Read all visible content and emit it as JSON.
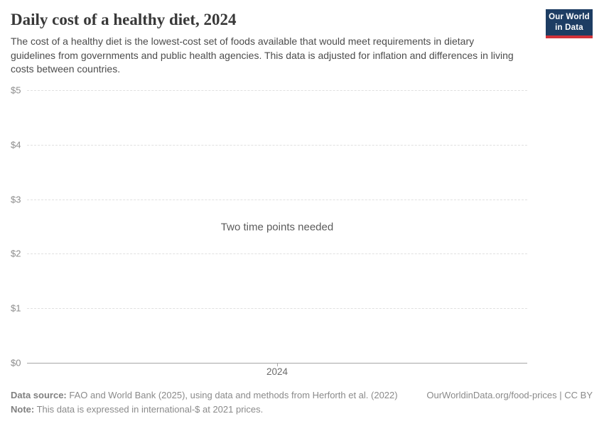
{
  "header": {
    "title": "Daily cost of a healthy diet, 2024",
    "subtitle": "The cost of a healthy diet is the lowest-cost set of foods available that would meet requirements in dietary guidelines from governments and public health agencies. This data is adjusted for inflation and differences in living costs between countries.",
    "logo": {
      "line1": "Our World",
      "line2": "in Data",
      "bg_color": "#1d3d63",
      "accent_color": "#d13239"
    }
  },
  "chart_data": {
    "type": "line",
    "title": "Daily cost of a healthy diet, 2024",
    "series": [],
    "x": [],
    "empty_message": "Two time points needed",
    "xlabel": "",
    "ylabel": "",
    "x_ticks": [
      "2024"
    ],
    "y_ticks": [
      {
        "label": "$0",
        "value": 0
      },
      {
        "label": "$1",
        "value": 1
      },
      {
        "label": "$2",
        "value": 2
      },
      {
        "label": "$3",
        "value": 3
      },
      {
        "label": "$4",
        "value": 4
      },
      {
        "label": "$5",
        "value": 5
      }
    ],
    "ylim": [
      0,
      5
    ],
    "grid": true,
    "legend": "none"
  },
  "footer": {
    "data_source_label": "Data source:",
    "data_source_text": " FAO and World Bank (2025), using data and methods from Herforth et al. (2022)",
    "note_label": "Note:",
    "note_text": " This data is expressed in international-$ at 2021 prices.",
    "link": "OurWorldinData.org/food-prices | CC BY"
  },
  "colors": {
    "title": "#383838",
    "subtitle": "#4c4c4c",
    "tick_label": "#8c8c8c",
    "gridline": "#e0e0e0",
    "axis_line": "#a6a6a6",
    "empty_message": "#5b5b5b",
    "footer_text": "#8a8a8a"
  }
}
